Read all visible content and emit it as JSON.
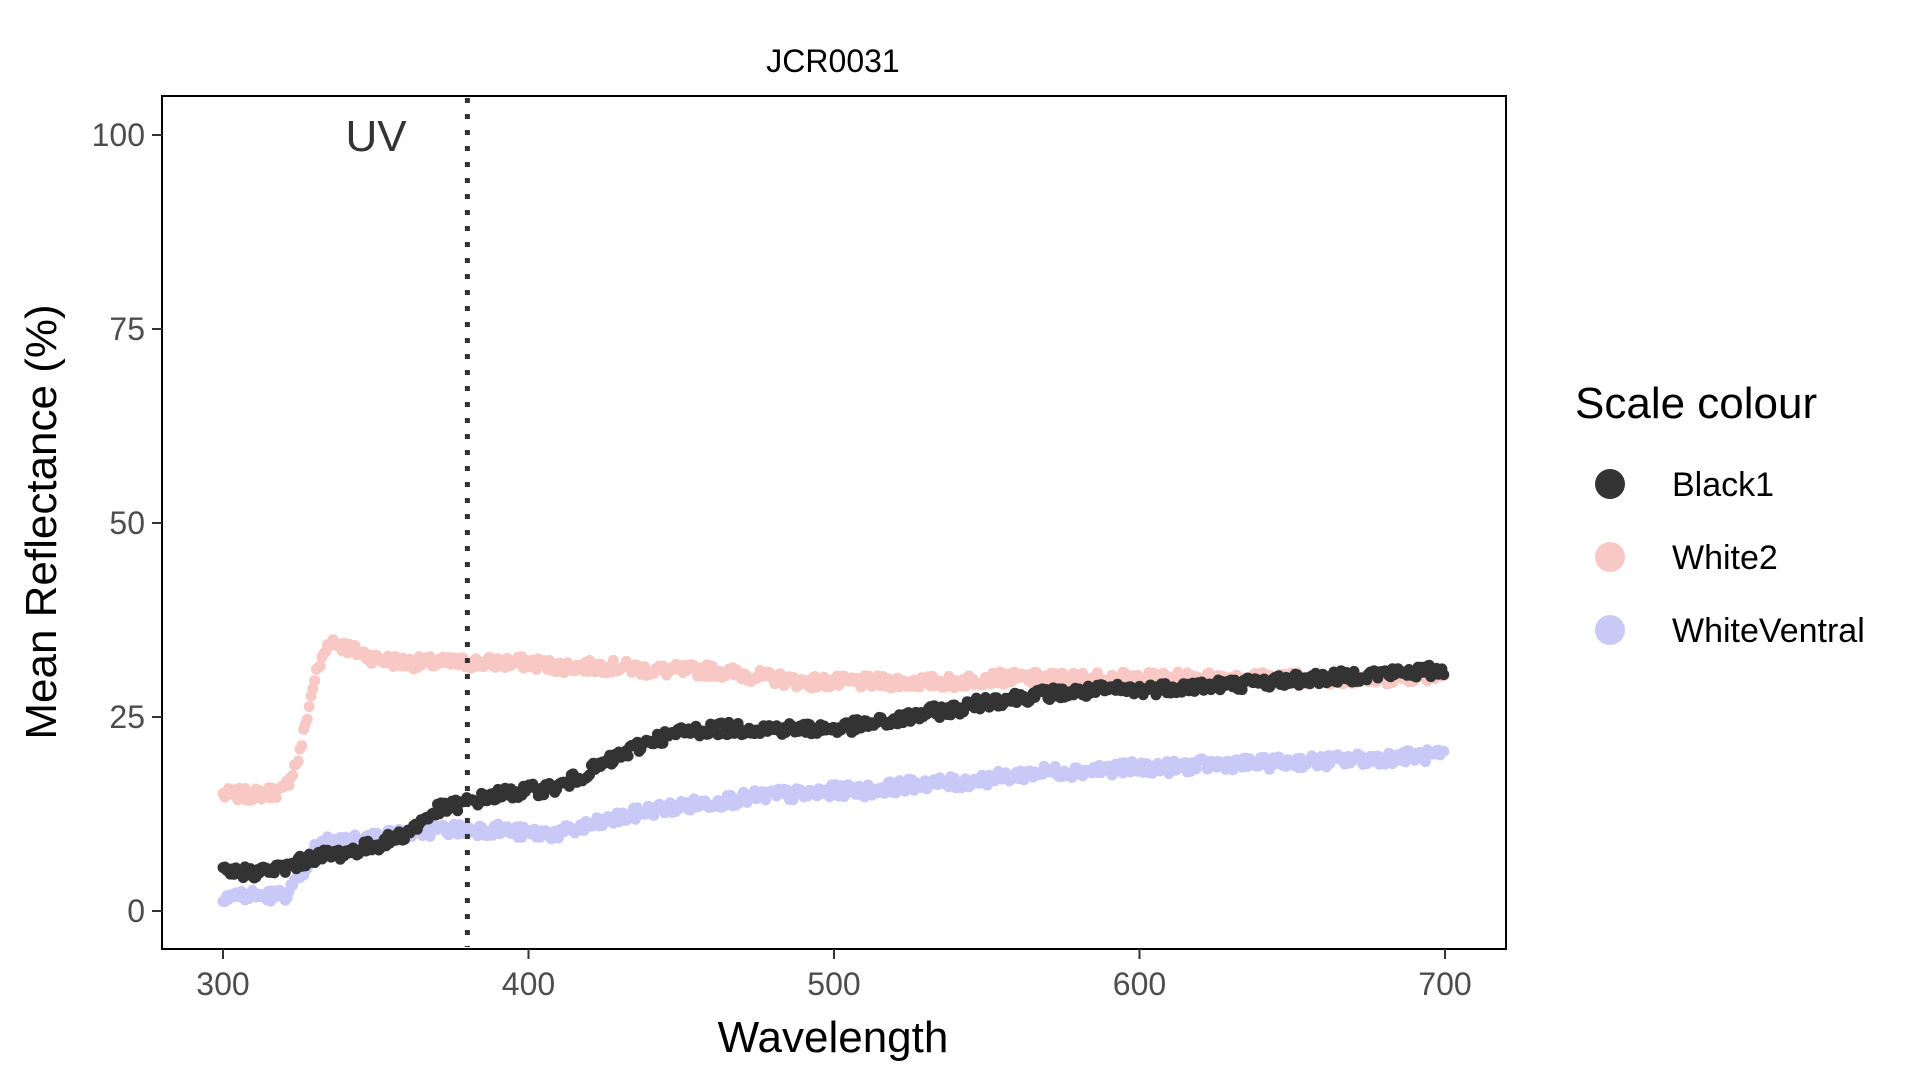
{
  "chart_data": {
    "type": "scatter",
    "title": "JCR0031",
    "xlabel": "Wavelength",
    "ylabel": "Mean Reflectance (%)",
    "xlim": [
      280,
      720
    ],
    "ylim": [
      -5,
      105
    ],
    "x_ticks": [
      300,
      400,
      500,
      600,
      700
    ],
    "y_ticks": [
      0,
      25,
      50,
      75,
      100
    ],
    "grid": false,
    "legend": {
      "title": "Scale colour",
      "position": "right"
    },
    "annotations": [
      {
        "text": "UV",
        "x": 350,
        "y": 100
      }
    ],
    "vline": {
      "x": 380,
      "style": "dotted",
      "color": "#333333"
    },
    "series": [
      {
        "name": "Black1",
        "color": "#333333",
        "points": [
          [
            300,
            5
          ],
          [
            310,
            5
          ],
          [
            320,
            5.5
          ],
          [
            330,
            7
          ],
          [
            340,
            7.5
          ],
          [
            350,
            8.5
          ],
          [
            360,
            10
          ],
          [
            370,
            13
          ],
          [
            380,
            14
          ],
          [
            390,
            15
          ],
          [
            400,
            15.5
          ],
          [
            410,
            16
          ],
          [
            420,
            18
          ],
          [
            430,
            20
          ],
          [
            440,
            22
          ],
          [
            450,
            23
          ],
          [
            460,
            23.5
          ],
          [
            470,
            23.5
          ],
          [
            480,
            23.5
          ],
          [
            490,
            23.5
          ],
          [
            500,
            23.5
          ],
          [
            510,
            24
          ],
          [
            520,
            24.5
          ],
          [
            530,
            25.5
          ],
          [
            540,
            26
          ],
          [
            550,
            27
          ],
          [
            560,
            27.5
          ],
          [
            570,
            28
          ],
          [
            580,
            28.2
          ],
          [
            590,
            28.5
          ],
          [
            600,
            28.5
          ],
          [
            610,
            28.8
          ],
          [
            620,
            29
          ],
          [
            630,
            29.2
          ],
          [
            640,
            29.5
          ],
          [
            650,
            29.8
          ],
          [
            660,
            30
          ],
          [
            670,
            30.3
          ],
          [
            680,
            30.6
          ],
          [
            690,
            30.8
          ],
          [
            700,
            31
          ]
        ]
      },
      {
        "name": "White2",
        "color": "#f8c9c4",
        "points": [
          [
            300,
            15
          ],
          [
            310,
            15
          ],
          [
            320,
            15.5
          ],
          [
            325,
            20
          ],
          [
            330,
            30
          ],
          [
            335,
            35
          ],
          [
            340,
            34
          ],
          [
            350,
            32.5
          ],
          [
            360,
            32
          ],
          [
            370,
            32
          ],
          [
            380,
            32
          ],
          [
            390,
            32
          ],
          [
            400,
            32
          ],
          [
            410,
            31.5
          ],
          [
            420,
            31.5
          ],
          [
            430,
            31.5
          ],
          [
            440,
            31
          ],
          [
            450,
            31
          ],
          [
            460,
            31
          ],
          [
            470,
            30.5
          ],
          [
            480,
            30
          ],
          [
            490,
            29.5
          ],
          [
            500,
            29.5
          ],
          [
            510,
            29.5
          ],
          [
            520,
            29.5
          ],
          [
            530,
            29.5
          ],
          [
            540,
            29.5
          ],
          [
            550,
            30
          ],
          [
            560,
            30
          ],
          [
            570,
            30
          ],
          [
            580,
            30
          ],
          [
            590,
            30
          ],
          [
            600,
            30
          ],
          [
            610,
            30
          ],
          [
            620,
            30
          ],
          [
            630,
            30
          ],
          [
            640,
            30
          ],
          [
            650,
            30
          ],
          [
            660,
            30
          ],
          [
            670,
            30
          ],
          [
            680,
            30
          ],
          [
            690,
            30.3
          ],
          [
            700,
            30.5
          ]
        ]
      },
      {
        "name": "WhiteVentral",
        "color": "#c9c9f7",
        "points": [
          [
            300,
            2
          ],
          [
            310,
            2
          ],
          [
            320,
            2
          ],
          [
            325,
            4
          ],
          [
            330,
            8
          ],
          [
            335,
            9
          ],
          [
            340,
            9
          ],
          [
            350,
            9.5
          ],
          [
            360,
            10
          ],
          [
            370,
            10.5
          ],
          [
            380,
            10.5
          ],
          [
            390,
            10.5
          ],
          [
            400,
            10
          ],
          [
            410,
            10
          ],
          [
            420,
            11
          ],
          [
            430,
            12
          ],
          [
            440,
            13
          ],
          [
            450,
            13.5
          ],
          [
            460,
            14
          ],
          [
            470,
            14.5
          ],
          [
            480,
            15
          ],
          [
            490,
            15
          ],
          [
            500,
            15.5
          ],
          [
            510,
            15.5
          ],
          [
            520,
            16
          ],
          [
            530,
            16.5
          ],
          [
            540,
            16.5
          ],
          [
            550,
            17
          ],
          [
            560,
            17.5
          ],
          [
            570,
            18
          ],
          [
            580,
            18
          ],
          [
            590,
            18.3
          ],
          [
            600,
            18.5
          ],
          [
            610,
            18.5
          ],
          [
            620,
            18.8
          ],
          [
            630,
            19
          ],
          [
            640,
            19
          ],
          [
            650,
            19.2
          ],
          [
            660,
            19.3
          ],
          [
            670,
            19.5
          ],
          [
            680,
            19.7
          ],
          [
            690,
            20
          ],
          [
            700,
            20
          ]
        ]
      }
    ]
  }
}
